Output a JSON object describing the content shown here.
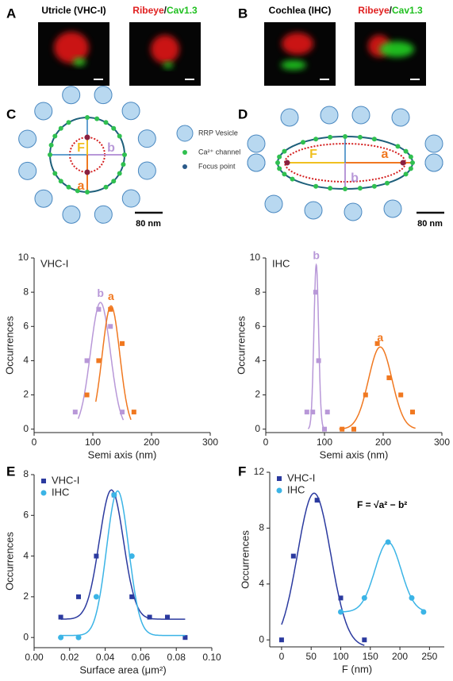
{
  "panels": [
    "A",
    "B",
    "C",
    "D",
    "E",
    "F"
  ],
  "images": [
    {
      "title": "Utricle (VHC-I)"
    },
    {
      "title_parts": [
        "Ribeye",
        "/",
        "Cav1.3"
      ]
    },
    {
      "title": "Cochlea (IHC)"
    },
    {
      "title_parts": [
        "Ribeye",
        "/",
        "Cav1.3"
      ]
    }
  ],
  "diagram_legend": [
    "RRP Vesicle",
    "Ca²⁺ channel",
    "Focus point"
  ],
  "diagram_c": {
    "labels": [
      "F",
      "a",
      "b"
    ],
    "scale_bar": "80 nm"
  },
  "diagram_d": {
    "labels": [
      "F",
      "a",
      "b"
    ],
    "scale_bar": "80 nm"
  },
  "chart_data": [
    {
      "type": "scatter",
      "title": "VHC-I",
      "xlabel": "Semi axis (nm)",
      "ylabel": "Occurrences",
      "xlim": [
        0,
        300
      ],
      "ylim": [
        -0.2,
        10
      ],
      "xticks": [
        0,
        100,
        200,
        300
      ],
      "yticks": [
        0,
        2,
        4,
        6,
        8,
        10
      ],
      "series": [
        {
          "name": "b",
          "color": "#b898d8",
          "marker": "square",
          "x": [
            70,
            90,
            110,
            130,
            150
          ],
          "values": [
            1,
            4,
            7,
            6,
            1
          ],
          "fit": {
            "center": 113,
            "sigma": 17,
            "amplitude": 7.4,
            "offset": 0,
            "range": [
              75,
              152
            ]
          }
        },
        {
          "name": "a",
          "color": "#f07820",
          "marker": "square",
          "x": [
            90,
            110,
            130,
            150,
            170
          ],
          "values": [
            2,
            4,
            7,
            5,
            1
          ],
          "fit": {
            "center": 131,
            "sigma": 15,
            "amplitude": 7.2,
            "offset": 0,
            "range": [
              105,
              165
            ]
          }
        }
      ]
    },
    {
      "type": "scatter",
      "title": "IHC",
      "xlabel": "Semi axis (nm)",
      "ylabel": "Occurrences",
      "xlim": [
        0,
        300
      ],
      "ylim": [
        -0.2,
        10
      ],
      "xticks": [
        0,
        100,
        200,
        300
      ],
      "yticks": [
        0,
        2,
        4,
        6,
        8,
        10
      ],
      "series": [
        {
          "name": "b",
          "color": "#b898d8",
          "marker": "square",
          "x": [
            70,
            80,
            85,
            90,
            100,
            105
          ],
          "values": [
            1,
            1,
            8,
            4,
            0,
            1
          ],
          "fit": {
            "center": 86,
            "sigma": 4,
            "amplitude": 9.6,
            "offset": 0,
            "range": [
              72,
              100
            ]
          }
        },
        {
          "name": "a",
          "color": "#f07820",
          "marker": "square",
          "x": [
            130,
            150,
            170,
            190,
            210,
            230,
            250
          ],
          "values": [
            0,
            0,
            2,
            5,
            3,
            2,
            1
          ],
          "fit": {
            "center": 195,
            "sigma": 20,
            "amplitude": 4.8,
            "offset": 0,
            "range": [
              125,
              255
            ]
          }
        }
      ]
    },
    {
      "type": "scatter",
      "xlabel": "Surface area (μm²)",
      "ylabel": "Occurrences",
      "legend": "top-left",
      "xlim": [
        0,
        0.1
      ],
      "ylim": [
        -0.5,
        8
      ],
      "xticks": [
        {
          "value": 0,
          "label": "0.00"
        },
        0.02,
        0.04,
        0.06,
        0.08,
        {
          "value": 0.1,
          "label": "0.10"
        }
      ],
      "yticks": [
        0,
        2,
        4,
        6,
        8
      ],
      "series": [
        {
          "name": "VHC-I",
          "color": "#2b3a9f",
          "marker": "square",
          "x": [
            0.015,
            0.025,
            0.035,
            0.045,
            0.055,
            0.065,
            0.075,
            0.085
          ],
          "values": [
            1,
            2,
            4,
            7,
            2,
            1,
            1,
            0
          ],
          "fit": {
            "center": 0.0435,
            "sigma": 0.0068,
            "amplitude": 6.35,
            "offset": 0.9,
            "range": [
              0.015,
              0.085
            ]
          }
        },
        {
          "name": "IHC",
          "color": "#3bb4e6",
          "marker": "circle",
          "x": [
            0.015,
            0.025,
            0.035,
            0.045,
            0.055
          ],
          "values": [
            0,
            0,
            2,
            7,
            4
          ],
          "fit": {
            "center": 0.047,
            "sigma": 0.0062,
            "amplitude": 7.1,
            "offset": 0.1,
            "range": [
              0.015,
              0.085
            ]
          }
        }
      ]
    },
    {
      "type": "scatter",
      "xlabel": "F (nm)",
      "ylabel": "Occurrences",
      "legend": "top-left",
      "annotation": "F = √a² − b²",
      "xlim": [
        -20,
        275
      ],
      "ylim": [
        -0.5,
        12
      ],
      "xticks": [
        0,
        50,
        100,
        150,
        200,
        250
      ],
      "yticks": [
        0,
        4,
        8,
        12
      ],
      "series": [
        {
          "name": "VHC-I",
          "color": "#2b3a9f",
          "marker": "square",
          "x": [
            0,
            20,
            60,
            100,
            140
          ],
          "values": [
            0,
            6,
            10,
            3,
            0
          ],
          "fit": {
            "center": 55,
            "sigma": 28,
            "amplitude": 11,
            "offset": -0.5,
            "range": [
              0,
              140
            ]
          }
        },
        {
          "name": "IHC",
          "color": "#3bb4e6",
          "marker": "circle",
          "x": [
            100,
            140,
            180,
            220,
            240
          ],
          "values": [
            2,
            3,
            7,
            3,
            2
          ],
          "fit": {
            "center": 180,
            "sigma": 22,
            "amplitude": 5,
            "offset": 2,
            "range": [
              100,
              240
            ]
          }
        }
      ]
    }
  ]
}
